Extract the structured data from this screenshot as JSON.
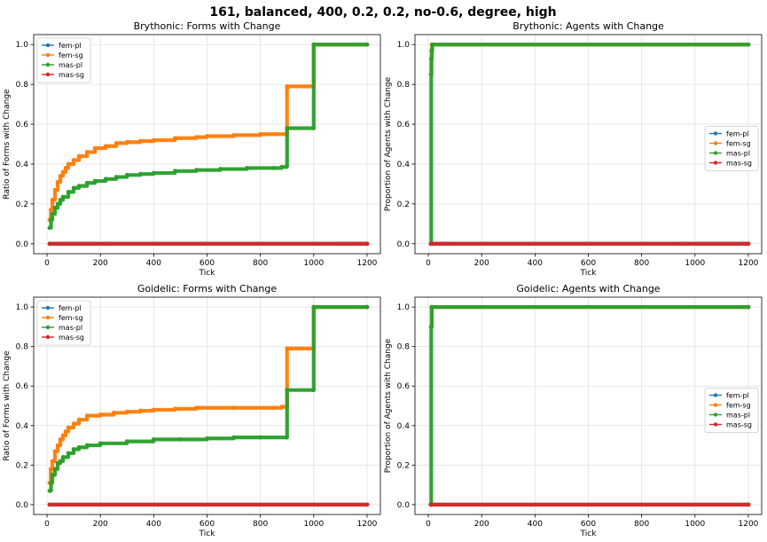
{
  "suptitle": "161, balanced, 400, 0.2, 0.2, no-0.6, degree, high",
  "colors": {
    "fem-pl": "#1f77b4",
    "fem-sg": "#ff7f0e",
    "mas-pl": "#2ca02c",
    "mas-sg": "#d62728"
  },
  "chart_data": [
    {
      "type": "line",
      "title": "Brythonic: Forms with Change",
      "xlabel": "Tick",
      "ylabel": "Ratio of Forms with Change",
      "xlim": [
        -50,
        1250
      ],
      "ylim": [
        -0.05,
        1.05
      ],
      "xticks": [
        0,
        200,
        400,
        600,
        800,
        1000,
        1200
      ],
      "yticks": [
        0.0,
        0.2,
        0.4,
        0.6,
        0.8,
        1.0
      ],
      "grid": true,
      "legend": "top-left",
      "series": [
        {
          "name": "fem-pl",
          "points": [
            [
              10,
              0.0
            ],
            [
              1200,
              0.0
            ]
          ]
        },
        {
          "name": "fem-sg",
          "points": [
            [
              10,
              0.12
            ],
            [
              14,
              0.17
            ],
            [
              20,
              0.22
            ],
            [
              30,
              0.27
            ],
            [
              40,
              0.31
            ],
            [
              50,
              0.34
            ],
            [
              60,
              0.36
            ],
            [
              70,
              0.38
            ],
            [
              80,
              0.4
            ],
            [
              100,
              0.42
            ],
            [
              120,
              0.44
            ],
            [
              150,
              0.46
            ],
            [
              180,
              0.48
            ],
            [
              220,
              0.49
            ],
            [
              260,
              0.505
            ],
            [
              300,
              0.51
            ],
            [
              350,
              0.515
            ],
            [
              400,
              0.52
            ],
            [
              480,
              0.53
            ],
            [
              560,
              0.535
            ],
            [
              600,
              0.54
            ],
            [
              700,
              0.545
            ],
            [
              800,
              0.55
            ],
            [
              899,
              0.55
            ],
            [
              900,
              0.79
            ],
            [
              999,
              0.79
            ],
            [
              1000,
              1.0
            ],
            [
              1200,
              1.0
            ]
          ]
        },
        {
          "name": "mas-pl",
          "points": [
            [
              10,
              0.08
            ],
            [
              15,
              0.12
            ],
            [
              20,
              0.15
            ],
            [
              30,
              0.18
            ],
            [
              40,
              0.2
            ],
            [
              50,
              0.22
            ],
            [
              60,
              0.235
            ],
            [
              80,
              0.26
            ],
            [
              100,
              0.28
            ],
            [
              120,
              0.29
            ],
            [
              150,
              0.305
            ],
            [
              180,
              0.315
            ],
            [
              220,
              0.325
            ],
            [
              260,
              0.335
            ],
            [
              300,
              0.345
            ],
            [
              350,
              0.35
            ],
            [
              400,
              0.355
            ],
            [
              480,
              0.365
            ],
            [
              560,
              0.37
            ],
            [
              650,
              0.375
            ],
            [
              750,
              0.38
            ],
            [
              850,
              0.38
            ],
            [
              880,
              0.385
            ],
            [
              899,
              0.39
            ],
            [
              900,
              0.58
            ],
            [
              999,
              0.58
            ],
            [
              1000,
              1.0
            ],
            [
              1200,
              1.0
            ]
          ]
        },
        {
          "name": "mas-sg",
          "points": [
            [
              10,
              0.0
            ],
            [
              1200,
              0.0
            ]
          ]
        }
      ]
    },
    {
      "type": "line",
      "title": "Brythonic: Agents with Change",
      "xlabel": "Tick",
      "ylabel": "Proportion of Agents with Change",
      "xlim": [
        -50,
        1250
      ],
      "ylim": [
        -0.05,
        1.05
      ],
      "xticks": [
        0,
        200,
        400,
        600,
        800,
        1000,
        1200
      ],
      "yticks": [
        0.0,
        0.2,
        0.4,
        0.6,
        0.8,
        1.0
      ],
      "grid": true,
      "legend": "center-right",
      "series": [
        {
          "name": "fem-pl",
          "points": [
            [
              10,
              0.0
            ],
            [
              1200,
              0.0
            ]
          ]
        },
        {
          "name": "fem-sg",
          "points": [
            [
              10,
              0.85
            ],
            [
              11,
              0.93
            ],
            [
              12,
              0.97
            ],
            [
              14,
              1.0
            ],
            [
              1200,
              1.0
            ]
          ]
        },
        {
          "name": "mas-pl",
          "points": [
            [
              10,
              0.0
            ],
            [
              11,
              0.85
            ],
            [
              12,
              0.93
            ],
            [
              13,
              0.97
            ],
            [
              15,
              1.0
            ],
            [
              1200,
              1.0
            ]
          ]
        },
        {
          "name": "mas-sg",
          "points": [
            [
              10,
              0.0
            ],
            [
              1200,
              0.0
            ]
          ]
        }
      ]
    },
    {
      "type": "line",
      "title": "Goidelic: Forms with Change",
      "xlabel": "Tick",
      "ylabel": "Ratio of Forms with Change",
      "xlim": [
        -50,
        1250
      ],
      "ylim": [
        -0.05,
        1.05
      ],
      "xticks": [
        0,
        200,
        400,
        600,
        800,
        1000,
        1200
      ],
      "yticks": [
        0.0,
        0.2,
        0.4,
        0.6,
        0.8,
        1.0
      ],
      "grid": true,
      "legend": "top-left",
      "series": [
        {
          "name": "fem-pl",
          "points": [
            [
              10,
              0.0
            ],
            [
              1200,
              0.0
            ]
          ]
        },
        {
          "name": "fem-sg",
          "points": [
            [
              10,
              0.11
            ],
            [
              14,
              0.18
            ],
            [
              20,
              0.22
            ],
            [
              30,
              0.27
            ],
            [
              40,
              0.3
            ],
            [
              50,
              0.33
            ],
            [
              60,
              0.35
            ],
            [
              70,
              0.37
            ],
            [
              80,
              0.39
            ],
            [
              100,
              0.41
            ],
            [
              120,
              0.43
            ],
            [
              150,
              0.45
            ],
            [
              200,
              0.455
            ],
            [
              250,
              0.465
            ],
            [
              300,
              0.47
            ],
            [
              350,
              0.475
            ],
            [
              400,
              0.48
            ],
            [
              480,
              0.485
            ],
            [
              560,
              0.49
            ],
            [
              700,
              0.49
            ],
            [
              850,
              0.49
            ],
            [
              880,
              0.495
            ],
            [
              899,
              0.49
            ],
            [
              900,
              0.79
            ],
            [
              999,
              0.79
            ],
            [
              1000,
              1.0
            ],
            [
              1200,
              1.0
            ]
          ]
        },
        {
          "name": "mas-pl",
          "points": [
            [
              10,
              0.07
            ],
            [
              15,
              0.11
            ],
            [
              20,
              0.15
            ],
            [
              30,
              0.18
            ],
            [
              40,
              0.21
            ],
            [
              50,
              0.22
            ],
            [
              60,
              0.24
            ],
            [
              80,
              0.26
            ],
            [
              100,
              0.28
            ],
            [
              120,
              0.29
            ],
            [
              150,
              0.3
            ],
            [
              200,
              0.31
            ],
            [
              300,
              0.32
            ],
            [
              400,
              0.33
            ],
            [
              500,
              0.33
            ],
            [
              600,
              0.335
            ],
            [
              700,
              0.34
            ],
            [
              800,
              0.34
            ],
            [
              899,
              0.34
            ],
            [
              900,
              0.58
            ],
            [
              999,
              0.58
            ],
            [
              1000,
              1.0
            ],
            [
              1200,
              1.0
            ]
          ]
        },
        {
          "name": "mas-sg",
          "points": [
            [
              10,
              0.0
            ],
            [
              1200,
              0.0
            ]
          ]
        }
      ]
    },
    {
      "type": "line",
      "title": "Goidelic: Agents with Change",
      "xlabel": "Tick",
      "ylabel": "Proportion of Agents with Change",
      "xlim": [
        -50,
        1250
      ],
      "ylim": [
        -0.05,
        1.05
      ],
      "xticks": [
        0,
        200,
        400,
        600,
        800,
        1000,
        1200
      ],
      "yticks": [
        0.0,
        0.2,
        0.4,
        0.6,
        0.8,
        1.0
      ],
      "grid": true,
      "legend": "center-right",
      "series": [
        {
          "name": "fem-pl",
          "points": [
            [
              10,
              0.0
            ],
            [
              1200,
              0.0
            ]
          ]
        },
        {
          "name": "fem-sg",
          "points": [
            [
              10,
              0.9
            ],
            [
              12,
              1.0
            ],
            [
              1200,
              1.0
            ]
          ]
        },
        {
          "name": "mas-pl",
          "points": [
            [
              10,
              0.0
            ],
            [
              11,
              0.9
            ],
            [
              13,
              1.0
            ],
            [
              1200,
              1.0
            ]
          ]
        },
        {
          "name": "mas-sg",
          "points": [
            [
              10,
              0.0
            ],
            [
              1200,
              0.0
            ]
          ]
        }
      ]
    }
  ]
}
